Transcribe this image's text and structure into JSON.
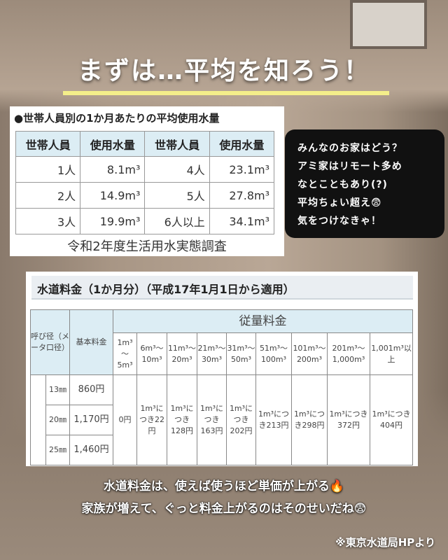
{
  "title": "まずは…平均を知ろう！",
  "colors": {
    "underline": "#f4ee8a",
    "table_header": "#dcedf4",
    "bubble": "#111111"
  },
  "usage_table": {
    "caption": "●世帯人員別の1か月あたりの平均使用水量",
    "headers": [
      "世帯人員",
      "使用水量",
      "世帯人員",
      "使用水量"
    ],
    "rows": [
      [
        "1人",
        "8.1m³",
        "4人",
        "23.1m³"
      ],
      [
        "2人",
        "14.9m³",
        "5人",
        "27.8m³"
      ],
      [
        "3人",
        "19.9m³",
        "6人以上",
        "34.1m³"
      ]
    ],
    "source": "令和2年度生活用水実態調査"
  },
  "bubble": {
    "lines": [
      "みんなのお家はどう？",
      "アミ家はリモート多め",
      "なとこともあり(?)",
      "平均ちょい超え😨",
      "気をつけなきゃ！"
    ]
  },
  "fee_table": {
    "title": "水道料金（1か月分）（平成17年1月1日から適用）",
    "h_diameter": "呼び径（メータ口径）",
    "h_base": "基本料金",
    "h_usage": "従量料金",
    "ranges": [
      "1m³～5m³",
      "6m³～10m³",
      "11m³～20m³",
      "21m³～30m³",
      "31m³～50m³",
      "51m³～100m³",
      "101m³～200m³",
      "201m³～1,000m³",
      "1,001m³以上"
    ],
    "sizes": [
      {
        "size": "13㎜",
        "base": "860円"
      },
      {
        "size": "20㎜",
        "base": "1,170円"
      },
      {
        "size": "25㎜",
        "base": "1,460円"
      }
    ],
    "prices": [
      "0円",
      "1m³につき22円",
      "1m³につき128円",
      "1m³につき163円",
      "1m³につき202円",
      "1m³につき213円",
      "1m³につき298円",
      "1m³につき372円",
      "1m³につき404円"
    ]
  },
  "caption": {
    "line1": "水道料金は、使えば使うほど単価が上がる🔥",
    "line2": "家族が増えて、ぐっと料金上がるのはそのせいだね😨"
  },
  "source": "※東京水道局HPより"
}
